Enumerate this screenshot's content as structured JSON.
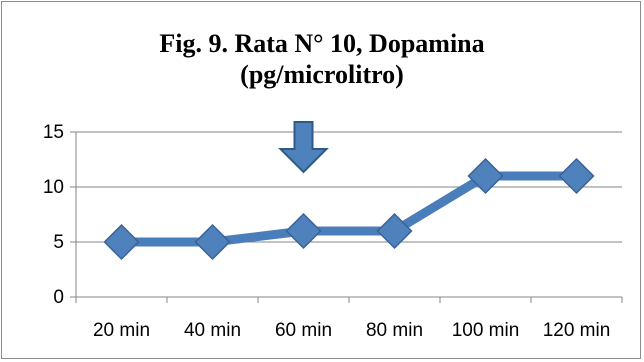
{
  "chart_data": {
    "type": "line",
    "title_lines": [
      "Fig. 9. Rata N° 10, Dopamina",
      "(pg/microlitro)"
    ],
    "categories": [
      "20 min",
      "40 min",
      "60 min",
      "80 min",
      "100 min",
      "120 min"
    ],
    "series": [
      {
        "values": [
          5,
          5,
          6,
          6,
          11,
          11
        ]
      }
    ],
    "ylim": [
      0,
      15
    ],
    "yticks": [
      0,
      5,
      10,
      15
    ],
    "grid": true,
    "legend": "none",
    "annotation": {
      "type": "down-arrow",
      "category": "60 min"
    },
    "colors": {
      "line": "#4A7EBB",
      "marker_fill": "#4F81BD",
      "marker_stroke": "#3A6394",
      "arrow_fill": "#4F81BD",
      "arrow_stroke": "#2C5A8A",
      "axis": "#868686",
      "grid": "#868686"
    }
  }
}
